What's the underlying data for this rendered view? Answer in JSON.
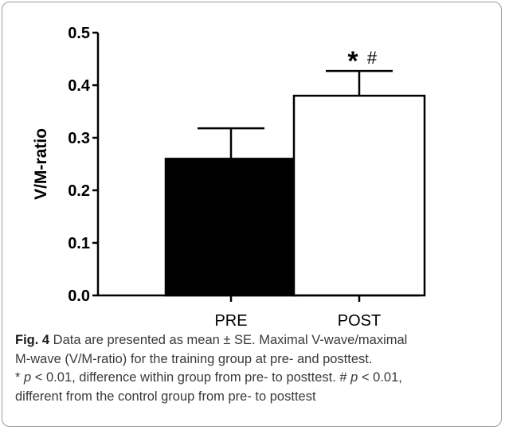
{
  "chart_data": {
    "type": "bar",
    "categories": [
      "PRE",
      "POST"
    ],
    "values": [
      0.26,
      0.38
    ],
    "errors": [
      0.058,
      0.047
    ],
    "bar_colors": [
      "#000000",
      "#ffffff"
    ],
    "ylabel": "V/M-ratio",
    "xlabel": "",
    "ylim": [
      0,
      0.5
    ],
    "yticks": [
      "0.0",
      "0.1",
      "0.2",
      "0.3",
      "0.4",
      "0.5"
    ],
    "grid": false,
    "annotation": {
      "category": "POST",
      "star": "*",
      "hash": "#"
    }
  },
  "caption": {
    "label": "Fig. 4",
    "line1": " Data are presented as mean ± SE. Maximal V-wave/maximal",
    "line2": "M-wave (V/M-ratio) for the training group at pre- and posttest.",
    "line3_pre": "* ",
    "p1": "p",
    "line3_post": " < 0.01, difference within group from pre- to posttest. # ",
    "p2": "p",
    "line3_end": " < 0.01,",
    "line4": "different from the control group from pre- to posttest"
  }
}
